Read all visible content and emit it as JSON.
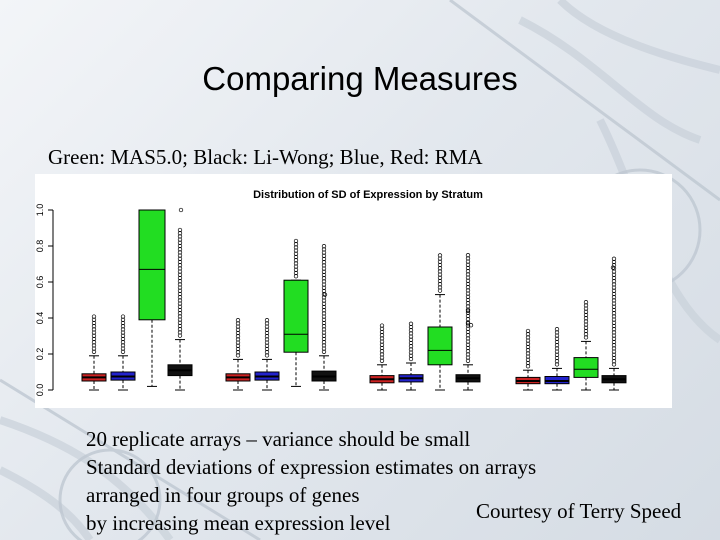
{
  "slide": {
    "title": "Comparing Measures",
    "subtitle": "Green: MAS5.0; Black: Li-Wong; Blue, Red: RMA",
    "bullets": [
      "20 replicate arrays – variance should be small",
      "Standard deviations of expression estimates on arrays",
      "arranged in four groups of genes",
      "by increasing mean expression level"
    ],
    "courtesy": "Courtesy of Terry Speed"
  },
  "chart_data": {
    "type": "boxplot",
    "title": "Distribution of SD of Expression by Stratum",
    "xlabel": "",
    "ylabel": "",
    "ylim": [
      0.0,
      1.0
    ],
    "yticks": [
      "0.0",
      "0.2",
      "0.4",
      "0.6",
      "0.8",
      "1.0"
    ],
    "grid": false,
    "colors": {
      "red": "#cc2222",
      "blue": "#2222cc",
      "green": "#22dd22",
      "black": "#111111"
    },
    "groups": [
      {
        "boxes": [
          {
            "color": "red",
            "q1": 0.05,
            "median": 0.07,
            "q3": 0.09,
            "whisker_low": 0.0,
            "whisker_high": 0.19
          },
          {
            "color": "blue",
            "q1": 0.055,
            "median": 0.075,
            "q3": 0.1,
            "whisker_low": 0.0,
            "whisker_high": 0.19
          },
          {
            "color": "green",
            "q1": 0.39,
            "median": 0.67,
            "q3": 1.0,
            "whisker_low": 0.02,
            "whisker_high": 1.0
          },
          {
            "color": "black",
            "q1": 0.08,
            "median": 0.11,
            "q3": 0.14,
            "whisker_low": 0.0,
            "whisker_high": 0.28
          }
        ]
      },
      {
        "boxes": [
          {
            "color": "red",
            "q1": 0.05,
            "median": 0.07,
            "q3": 0.09,
            "whisker_low": 0.0,
            "whisker_high": 0.17
          },
          {
            "color": "blue",
            "q1": 0.055,
            "median": 0.075,
            "q3": 0.1,
            "whisker_low": 0.0,
            "whisker_high": 0.17
          },
          {
            "color": "green",
            "q1": 0.21,
            "median": 0.31,
            "q3": 0.61,
            "whisker_low": 0.02,
            "whisker_high": 0.61
          },
          {
            "color": "black",
            "q1": 0.05,
            "median": 0.075,
            "q3": 0.105,
            "whisker_low": 0.0,
            "whisker_high": 0.19
          }
        ]
      },
      {
        "boxes": [
          {
            "color": "red",
            "q1": 0.04,
            "median": 0.06,
            "q3": 0.08,
            "whisker_low": 0.0,
            "whisker_high": 0.14
          },
          {
            "color": "blue",
            "q1": 0.045,
            "median": 0.065,
            "q3": 0.085,
            "whisker_low": 0.0,
            "whisker_high": 0.15
          },
          {
            "color": "green",
            "q1": 0.14,
            "median": 0.22,
            "q3": 0.35,
            "whisker_low": 0.0,
            "whisker_high": 0.53
          },
          {
            "color": "black",
            "q1": 0.045,
            "median": 0.065,
            "q3": 0.085,
            "whisker_low": 0.0,
            "whisker_high": 0.14
          }
        ]
      },
      {
        "boxes": [
          {
            "color": "red",
            "q1": 0.035,
            "median": 0.05,
            "q3": 0.07,
            "whisker_low": 0.0,
            "whisker_high": 0.11
          },
          {
            "color": "blue",
            "q1": 0.035,
            "median": 0.05,
            "q3": 0.075,
            "whisker_low": 0.0,
            "whisker_high": 0.12
          },
          {
            "color": "green",
            "q1": 0.07,
            "median": 0.115,
            "q3": 0.18,
            "whisker_low": 0.0,
            "whisker_high": 0.27
          },
          {
            "color": "black",
            "q1": 0.04,
            "median": 0.06,
            "q3": 0.08,
            "whisker_low": 0.0,
            "whisker_high": 0.12
          }
        ]
      }
    ]
  }
}
